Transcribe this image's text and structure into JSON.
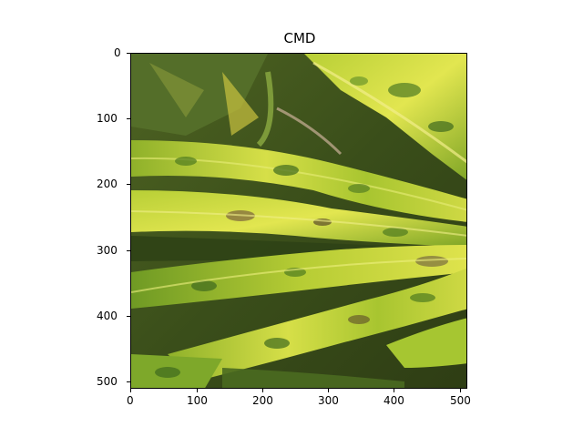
{
  "figure": {
    "title": "CMD",
    "image": {
      "description_icon": "leaf-photo",
      "palette": {
        "leaf_light": "#d9e24a",
        "leaf_mid": "#9cbf2a",
        "leaf_dark": "#3f6a1e",
        "shadow": "#2b3a14",
        "lesion": "#5a4a2a",
        "stem": "#b9a58a"
      }
    },
    "x_ticks": [
      "0",
      "100",
      "200",
      "300",
      "400",
      "500"
    ],
    "y_ticks": [
      "0",
      "100",
      "200",
      "300",
      "400",
      "500"
    ]
  }
}
